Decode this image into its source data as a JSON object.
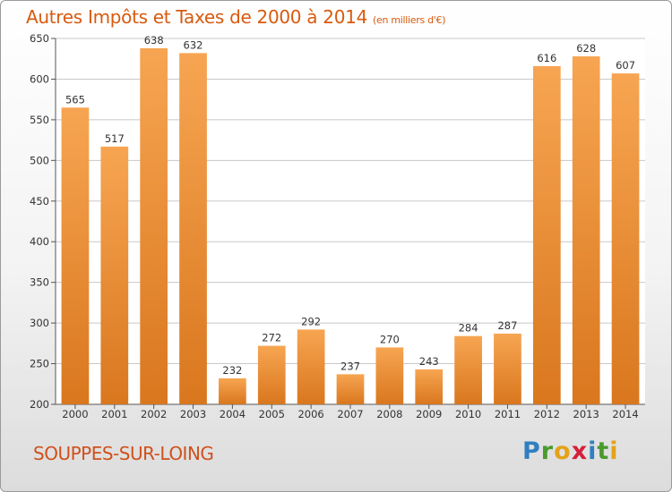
{
  "header": {
    "title": "Autres Impôts et Taxes de 2000 à 2014",
    "subtitle": "(en milliers d'€)"
  },
  "footer": {
    "commune": "SOUPPES-SUR-LOING",
    "logo": {
      "letters": [
        "P",
        "r",
        "o",
        "x",
        "i",
        "t",
        "i"
      ],
      "colors": [
        "#2f7fc1",
        "#4a9a2e",
        "#e3a21a",
        "#d4203a",
        "#2f7fc1",
        "#4a9a2e",
        "#e3a21a"
      ]
    }
  },
  "colors": {
    "bar_light": "#f7a552",
    "bar_dark": "#d9771e",
    "title": "#d85a0f",
    "grid": "#c8c8c8"
  },
  "chart_data": {
    "type": "bar",
    "title": "Autres Impôts et Taxes de 2000 à 2014",
    "subtitle": "(en milliers d'€)",
    "categories": [
      "2000",
      "2001",
      "2002",
      "2003",
      "2004",
      "2005",
      "2006",
      "2007",
      "2008",
      "2009",
      "2010",
      "2011",
      "2012",
      "2013",
      "2014"
    ],
    "values": [
      565,
      517,
      638,
      632,
      232,
      272,
      292,
      237,
      270,
      243,
      284,
      287,
      616,
      628,
      607
    ],
    "ylim": [
      200,
      650
    ],
    "yticks": [
      200,
      250,
      300,
      350,
      400,
      450,
      500,
      550,
      600,
      650
    ],
    "grid": true,
    "data_labels": true
  }
}
